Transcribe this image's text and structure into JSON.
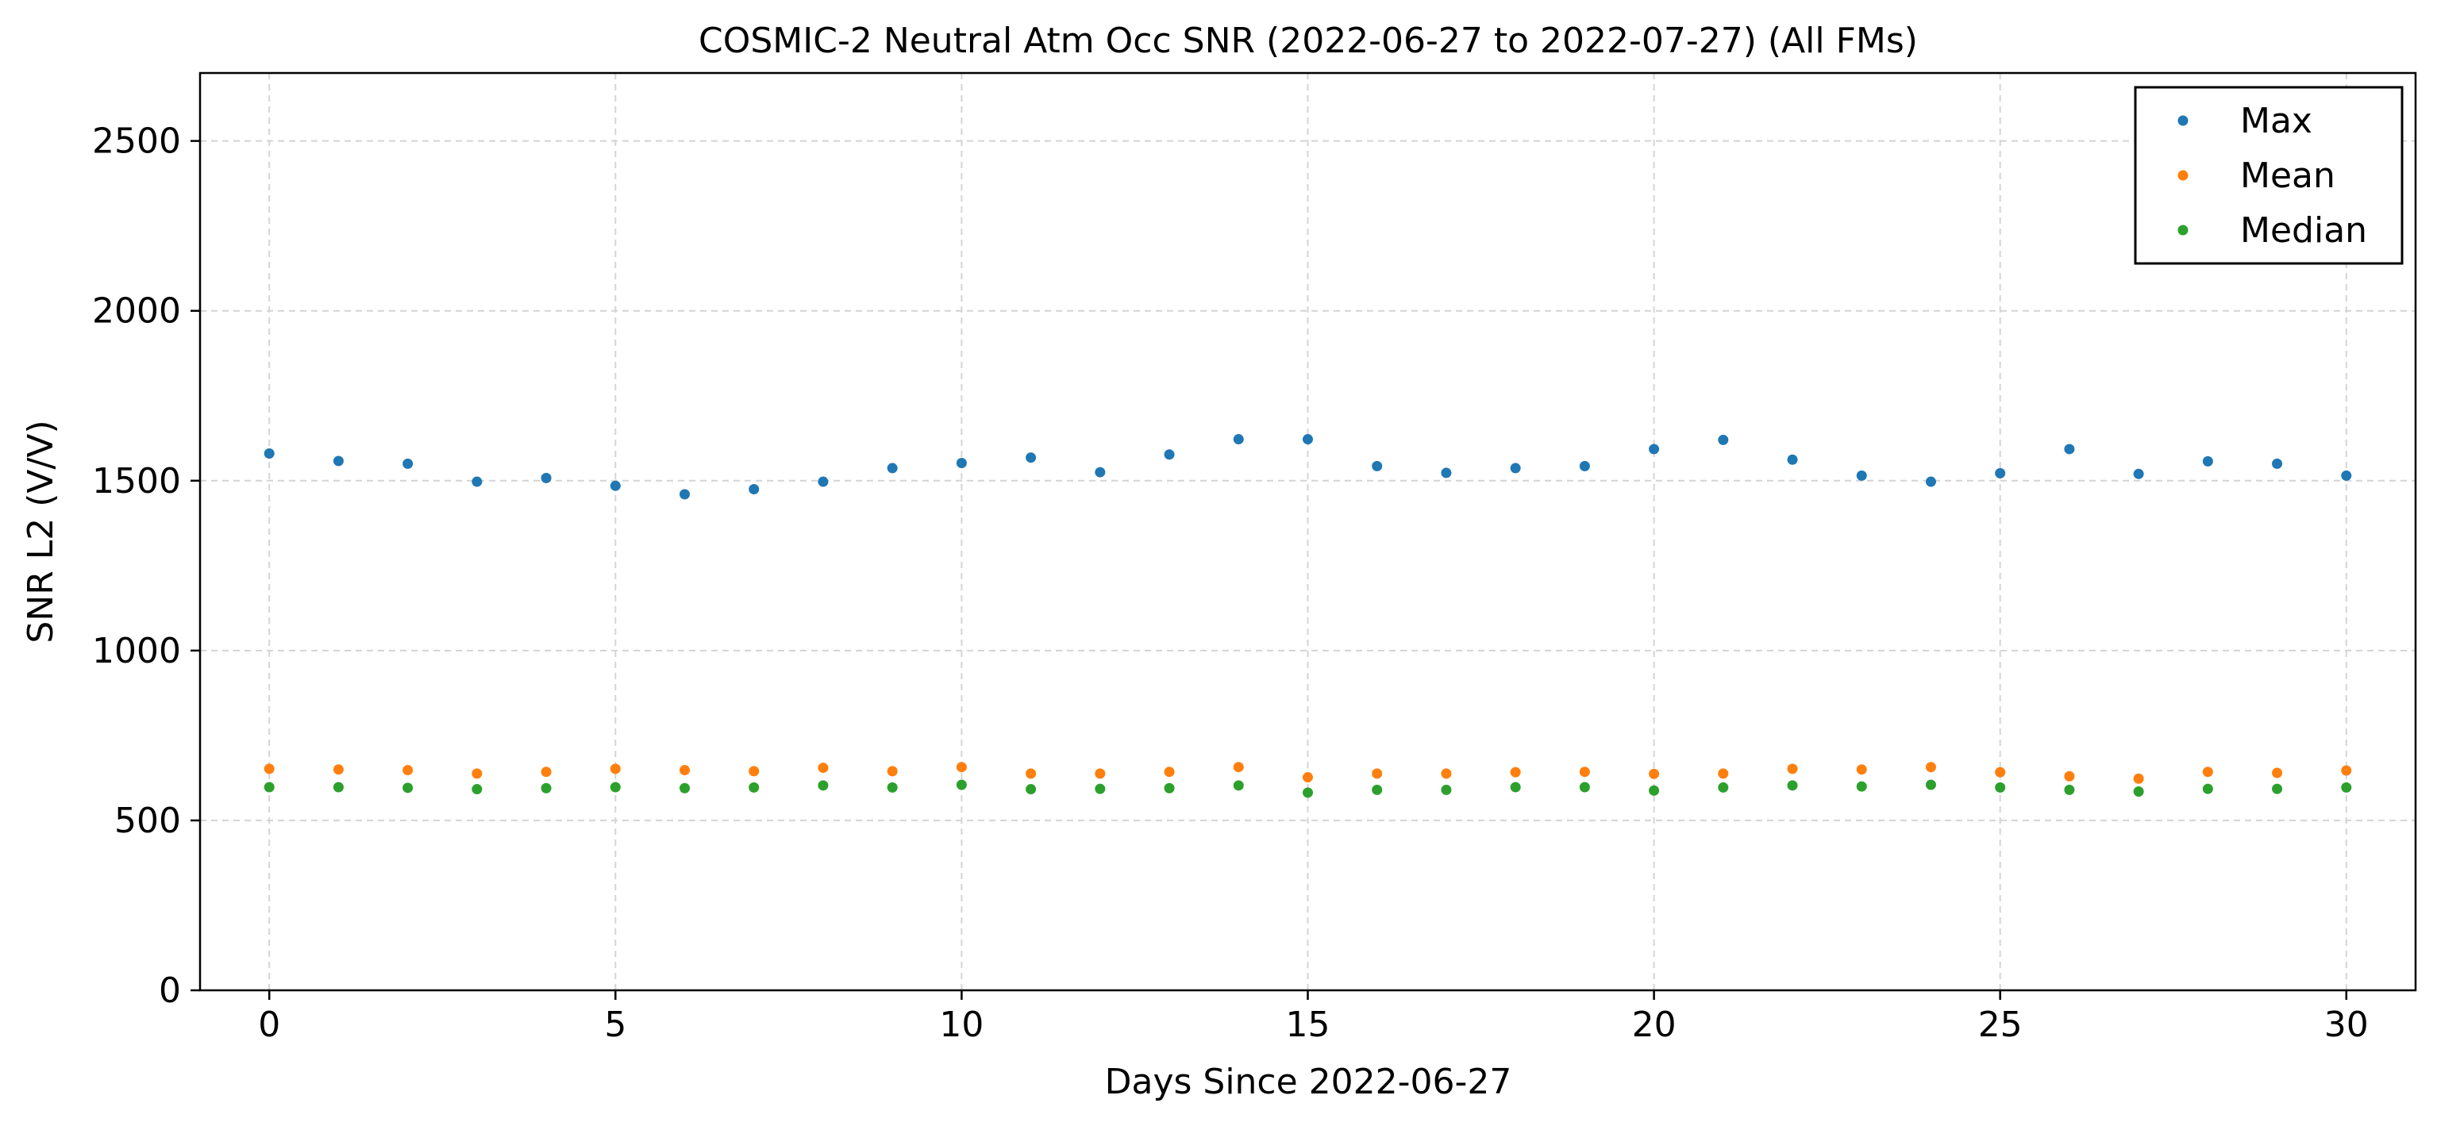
{
  "chart_data": {
    "type": "scatter",
    "title": "COSMIC-2 Neutral Atm Occ SNR (2022-06-27 to 2022-07-27) (All FMs)",
    "xlabel": "Days Since 2022-06-27",
    "ylabel": "SNR L2 (V/V)",
    "xlim": [
      -1,
      31
    ],
    "ylim": [
      0,
      2700
    ],
    "xticks": [
      0,
      5,
      10,
      15,
      20,
      25,
      30
    ],
    "yticks": [
      0,
      500,
      1000,
      1500,
      2000,
      2500
    ],
    "grid": true,
    "legend_position": "top-right",
    "x": [
      0,
      1,
      2,
      3,
      4,
      5,
      6,
      7,
      8,
      9,
      10,
      11,
      12,
      13,
      14,
      15,
      16,
      17,
      18,
      19,
      20,
      21,
      22,
      23,
      24,
      25,
      26,
      27,
      28,
      29,
      30
    ],
    "series": [
      {
        "name": "Max",
        "color": "#1f77b4",
        "values": [
          1580,
          1558,
          1550,
          1497,
          1508,
          1485,
          1460,
          1475,
          1497,
          1537,
          1552,
          1568,
          1525,
          1577,
          1622,
          1622,
          1543,
          1523,
          1537,
          1543,
          1593,
          1620,
          1562,
          1515,
          1497,
          1522,
          1593,
          1520,
          1557,
          1550,
          1515
        ]
      },
      {
        "name": "Mean",
        "color": "#ff7f0e",
        "values": [
          652,
          650,
          648,
          638,
          643,
          652,
          648,
          645,
          655,
          645,
          657,
          638,
          638,
          643,
          657,
          627,
          638,
          638,
          642,
          643,
          637,
          638,
          652,
          650,
          657,
          642,
          630,
          623,
          643,
          640,
          647
        ]
      },
      {
        "name": "Median",
        "color": "#2ca02c",
        "values": [
          598,
          598,
          596,
          592,
          595,
          598,
          595,
          597,
          603,
          597,
          605,
          592,
          593,
          595,
          603,
          582,
          590,
          590,
          598,
          598,
          588,
          597,
          603,
          600,
          605,
          597,
          590,
          585,
          593,
          593,
          597
        ]
      }
    ]
  }
}
